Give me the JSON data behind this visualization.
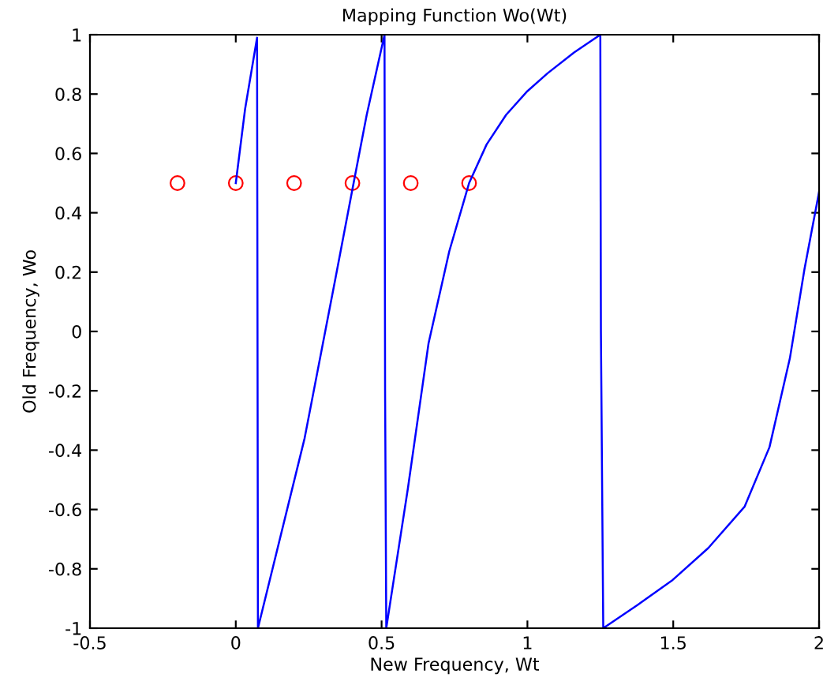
{
  "chart_data": {
    "type": "line",
    "title": "Mapping Function Wo(Wt)",
    "xlabel": "New Frequency, Wt",
    "ylabel": "Old Frequency, Wo",
    "xlim": [
      -0.5,
      2
    ],
    "ylim": [
      -1,
      1
    ],
    "xticks": [
      -0.5,
      0,
      0.5,
      1,
      1.5,
      2
    ],
    "yticks": [
      -1,
      -0.8,
      -0.6,
      -0.4,
      -0.2,
      0,
      0.2,
      0.4,
      0.6,
      0.8,
      1
    ],
    "grid": false,
    "legend": false,
    "series": [
      {
        "color": "#0000ff",
        "marker": "none",
        "line_style": "solid",
        "x": [
          0,
          0.032,
          0.073,
          0.076,
          0.236,
          0.342,
          0.404,
          0.449,
          0.51,
          0.512,
          0.516,
          0.59,
          0.661,
          0.732,
          0.8,
          0.86,
          0.927,
          1.0,
          1.069,
          1.16,
          1.25,
          1.252,
          1.26,
          1.38,
          1.495,
          1.62,
          1.745,
          1.83,
          1.9,
          1.95,
          2.0
        ],
        "values": [
          0.5,
          0.75,
          0.99,
          -1,
          -0.36,
          0.18,
          0.5,
          0.73,
          1,
          -0.2,
          -1,
          -0.53,
          -0.04,
          0.27,
          0.5,
          0.63,
          0.73,
          0.81,
          0.87,
          0.94,
          1,
          0,
          -1,
          -0.92,
          -0.84,
          -0.73,
          -0.59,
          -0.39,
          -0.09,
          0.21,
          0.47
        ]
      },
      {
        "type": "scatter",
        "color": "#ff0000",
        "marker": "circle",
        "x": [
          -0.2,
          0,
          0.2,
          0.4,
          0.6,
          0.8
        ],
        "values": [
          0.5,
          0.5,
          0.5,
          0.5,
          0.5,
          0.5
        ]
      }
    ]
  }
}
